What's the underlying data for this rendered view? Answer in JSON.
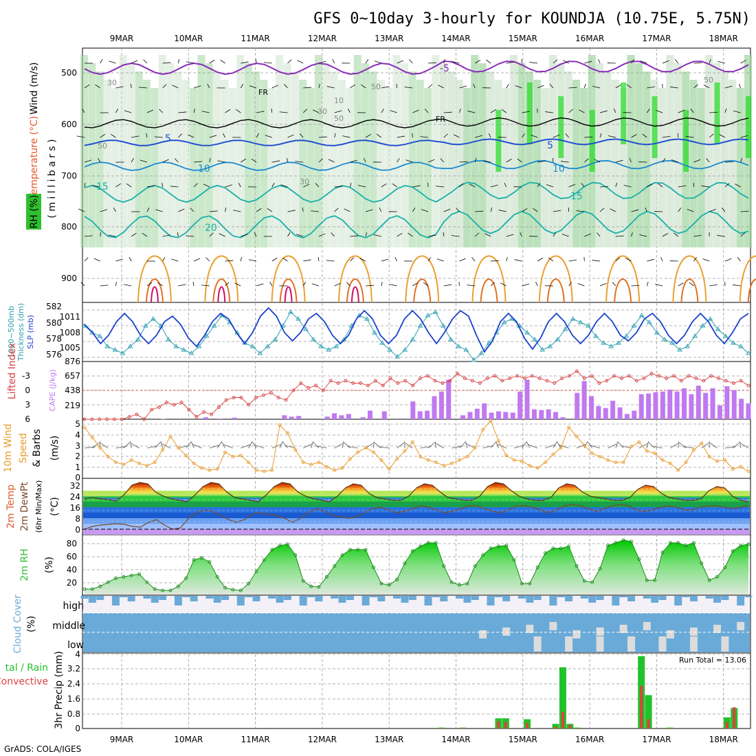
{
  "title": "GFS 0~10day 3-hourly for KOUNDJA (10.75E, 5.75N)",
  "footer": "GrADS: COLA/IGES",
  "date_labels": [
    "9MAR",
    "10MAR",
    "11MAR",
    "12MAR",
    "13MAR",
    "14MAR",
    "15MAR",
    "16MAR",
    "17MAR",
    "18MAR"
  ],
  "run_total_label": "Run Total = 13.06",
  "colors": {
    "axis": "#000000",
    "grid": "#9a9a9a",
    "thickness": "#2a9fb0",
    "slp": "#1a3fcc",
    "cape": "#c079f0",
    "lifted": "#d84040",
    "wind_speed": "#e89a2a",
    "rh_fill": "#2fbf2f",
    "cloud": "#6aaad8",
    "precip_total": "#22c22a",
    "precip_conv": "#e04040"
  },
  "panels": {
    "upper": {
      "wind_label": "Wind (m/s)",
      "temp_label": "Temperature (°C)",
      "rh_label": "RH (%)",
      "ylabel": "( m i l l i b a r s )",
      "ytick_labels": [
        "500",
        "600",
        "700",
        "800",
        "900"
      ],
      "temp_labels": [
        "-5",
        "5",
        "5",
        "10",
        "10",
        "15",
        "15",
        "20"
      ],
      "rh_labels": [
        "30",
        "50",
        "30",
        "50",
        "10",
        "50",
        "30",
        "50"
      ],
      "freezing_labels": [
        "FR",
        "FR"
      ]
    },
    "thickness": {
      "left_label": "1000~500mb",
      "left_label2": "Thickness (dm)",
      "right_label": "SLP (mb)",
      "left_ticks": [
        "582",
        "580",
        "578",
        "576"
      ],
      "right_ticks": [
        "1011",
        "1008",
        "1005",
        "876"
      ]
    },
    "cape": {
      "left_label": "Lifted Index",
      "right_label": "CAPE (J/kg)",
      "left_ticks": [
        "-3",
        "0",
        "3",
        "6"
      ],
      "right_ticks": [
        "657",
        "438",
        "219"
      ]
    },
    "wind10": {
      "label1": "10m Wind",
      "label2": "Speed",
      "label3": "& Barbs",
      "unit": "(m/s)",
      "ticks": [
        "5",
        "4",
        "3",
        "2",
        "1",
        "0"
      ]
    },
    "temp2m": {
      "label1": "2m Temp",
      "label2": "2m DewPt",
      "label3": "(6hr Min/Max)",
      "unit": "(°C)",
      "ticks": [
        "32",
        "24",
        "16",
        "8",
        "0"
      ]
    },
    "rh2m": {
      "label": "2m RH",
      "unit": "(%)",
      "ticks": [
        "80",
        "60",
        "40",
        "20"
      ]
    },
    "cloud": {
      "label": "Cloud Cover",
      "unit": "(%)",
      "levels": [
        "high",
        "middle",
        "low"
      ]
    },
    "precip": {
      "label1": "tal / Rain",
      "label2": "Convective",
      "ylabel": "3hr Precip (mm)",
      "ticks": [
        "4",
        "3.2",
        "2.4",
        "1.6",
        "0.8",
        "0"
      ]
    }
  },
  "chart_data": [
    {
      "type": "line",
      "name": "1000-500mb thickness (dm)",
      "ylim": [
        575,
        583
      ],
      "values": [
        580,
        579,
        578.5,
        577,
        576.5,
        576,
        577,
        578,
        580,
        581,
        580,
        578,
        577,
        576.5,
        576,
        577,
        578.5,
        580,
        581.5,
        580.5,
        579,
        577.5,
        577,
        576,
        577,
        578,
        580,
        582,
        581,
        579.5,
        578,
        577,
        576.5,
        577,
        578,
        580,
        581.5,
        581,
        579,
        577.5,
        576.5,
        575.5,
        576.5,
        578,
        580,
        581.5,
        582,
        580,
        578,
        577,
        576.5,
        575,
        576,
        577.5,
        579,
        580.5,
        581,
        580,
        579,
        578,
        576.5,
        577,
        578,
        579.5,
        581,
        580.5,
        580,
        578.5,
        577.5,
        577,
        577.5,
        578.5,
        580,
        581.5,
        580.5,
        579,
        578,
        577.5,
        576.5,
        577,
        578.5,
        580,
        581,
        579.5,
        578.5,
        577.5,
        577,
        576
      ]
    },
    {
      "type": "line",
      "name": "SLP (mb)",
      "ylim": [
        1003,
        1013
      ],
      "values": [
        1009.5,
        1008,
        1006,
        1007.5,
        1010,
        1011.5,
        1010,
        1007.5,
        1006,
        1007.5,
        1010,
        1011,
        1009.5,
        1007,
        1005.5,
        1007.5,
        1010,
        1011.5,
        1010.5,
        1008,
        1006,
        1008,
        1011,
        1012.5,
        1011,
        1008,
        1006.5,
        1008,
        1010.5,
        1011.5,
        1010,
        1007.5,
        1006,
        1007.5,
        1010.5,
        1012,
        1010.5,
        1007.5,
        1006,
        1007.5,
        1010.5,
        1012,
        1010.5,
        1008,
        1006,
        1008,
        1010.5,
        1012,
        1011,
        1007.5,
        1004.5,
        1006.5,
        1010,
        1011.5,
        1010,
        1007,
        1005,
        1007,
        1010,
        1011.5,
        1010,
        1007.5,
        1006,
        1007.5,
        1010,
        1011.5,
        1010,
        1007.5,
        1006.5,
        1008,
        1010.5,
        1011.5,
        1010,
        1007.5,
        1006,
        1007.5,
        1010,
        1011.5,
        1010,
        1007.5,
        1006,
        1008,
        1010.5,
        1011.5
      ]
    },
    {
      "type": "bar",
      "name": "CAPE (J/kg)",
      "ylim": [
        0,
        876
      ],
      "values": [
        0,
        0,
        5,
        5,
        0,
        0,
        0,
        0,
        0,
        0,
        0,
        5,
        0,
        0,
        0,
        0,
        0,
        30,
        0,
        10,
        0,
        25,
        0,
        0,
        0,
        0,
        0,
        0,
        60,
        40,
        50,
        0,
        0,
        0,
        40,
        90,
        60,
        80,
        0,
        30,
        130,
        0,
        120,
        0,
        0,
        0,
        270,
        120,
        130,
        350,
        420,
        600,
        0,
        60,
        110,
        160,
        240,
        100,
        120,
        110,
        100,
        420,
        600,
        150,
        140,
        150,
        110,
        30,
        0,
        400,
        580,
        350,
        200,
        170,
        280,
        180,
        80,
        130,
        380,
        390,
        410,
        420,
        450,
        420,
        470,
        380,
        510,
        400,
        470,
        210,
        500,
        440,
        310,
        240
      ]
    },
    {
      "type": "line",
      "name": "Lifted Index",
      "ylim": [
        -6,
        6
      ],
      "values": [
        6,
        6,
        6,
        6,
        6,
        6,
        5.5,
        5,
        6,
        4,
        3.5,
        2.5,
        3,
        2.5,
        4,
        5.5,
        4.5,
        5,
        3.5,
        2,
        1.5,
        1.5,
        3,
        1.5,
        1,
        0.5,
        1.5,
        2,
        0,
        -1.5,
        -0.5,
        -1,
        0,
        -2,
        -1.5,
        -2,
        -1.5,
        -1.5,
        -1,
        -2,
        -1,
        -2.5,
        -1.5,
        -2,
        -1,
        -2.5,
        -3,
        -2,
        -1.5,
        -2,
        -3.5,
        -2.5,
        -2,
        -1.5,
        -2.5,
        -3,
        -2,
        -2.5,
        -3,
        -2.5,
        -3,
        -2.5,
        -2,
        -1.5,
        -2.5,
        -3,
        -4,
        -2.5,
        -3,
        -1.5,
        -2,
        -3,
        -2.5,
        -3,
        -2,
        -2.5,
        -3.5,
        -3,
        -2.5,
        -3,
        -2,
        -3,
        -2.5,
        -2,
        -3,
        -2.5,
        -2,
        -1.5,
        -2,
        -1
      ]
    },
    {
      "type": "line",
      "name": "10m wind speed (m/s)",
      "ylim": [
        0,
        5
      ],
      "values": [
        4.4,
        3.5,
        2.6,
        1.8,
        1.3,
        1.1,
        1.5,
        1.2,
        1,
        1.3,
        2.4,
        3.6,
        2.6,
        1.9,
        1.2,
        0.8,
        0.6,
        0.7,
        2.2,
        1.8,
        1.9,
        1.3,
        0.6,
        0.5,
        0.6,
        4.6,
        3.9,
        2.4,
        1.3,
        1.1,
        1.3,
        0.9,
        0.6,
        0.8,
        1.6,
        2.2,
        2.6,
        2.2,
        1.5,
        0.7,
        1.6,
        2.3,
        3.1,
        1.8,
        1.5,
        1.3,
        1,
        1.2,
        1.5,
        1.8,
        2.6,
        4.2,
        5,
        3.2,
        1.9,
        1.5,
        1.4,
        1,
        0.8,
        1.3,
        2,
        2.6,
        4.4,
        3.6,
        2.8,
        2.1,
        1.8,
        1.5,
        1.3,
        1.3,
        2.7,
        3.1,
        2.3,
        2.1,
        1.5,
        1.2,
        0.6,
        1.3,
        2.4,
        3,
        1.8,
        1.4,
        1.5,
        0.7,
        0.9,
        0.5
      ]
    },
    {
      "type": "area",
      "name": "2m Temp (°C)",
      "ylim": [
        -4,
        36
      ],
      "values": [
        22,
        23,
        22,
        21.5,
        20.5,
        25,
        32,
        34,
        33,
        27,
        24,
        22,
        21,
        20,
        25,
        31,
        34,
        33,
        27,
        23,
        22,
        21,
        20,
        25,
        31,
        34,
        33,
        27,
        24,
        22,
        21,
        20,
        24,
        30,
        33,
        32,
        26,
        23,
        22,
        21,
        21,
        24,
        30,
        33,
        32,
        27,
        23,
        22,
        21,
        21,
        24,
        31,
        34,
        33,
        28,
        24,
        22,
        21,
        21,
        23,
        30,
        33,
        32,
        27,
        24,
        23,
        22,
        21,
        21,
        23,
        29,
        32,
        31,
        26,
        23,
        22,
        21,
        21,
        22,
        28,
        31,
        30,
        24,
        21,
        20
      ]
    },
    {
      "type": "line",
      "name": "2m DewPt (°C)",
      "ylim": [
        -4,
        36
      ],
      "values": [
        0,
        2,
        3,
        3.5,
        4,
        3.5,
        2,
        1.5,
        5,
        7,
        3,
        0,
        1,
        8,
        12,
        14,
        13,
        10,
        7,
        5,
        7,
        11,
        12,
        11,
        10,
        8,
        5,
        8,
        12,
        15,
        13,
        10,
        9,
        8,
        9,
        12,
        15,
        16,
        14,
        12,
        13,
        15,
        17,
        16,
        14,
        12,
        13,
        15,
        17,
        17,
        15,
        13,
        12,
        14,
        17,
        17,
        16,
        14,
        12,
        14,
        17,
        18,
        17,
        15,
        13,
        15,
        17,
        18,
        17,
        14,
        13,
        14,
        16,
        17,
        16,
        14,
        14,
        16,
        17,
        17,
        16,
        15,
        16,
        17
      ]
    },
    {
      "type": "area",
      "name": "2m RH (%)",
      "ylim": [
        5,
        90
      ],
      "values": [
        12,
        12,
        16,
        22,
        28,
        30,
        32,
        34,
        22,
        12,
        10,
        10,
        16,
        28,
        55,
        58,
        52,
        30,
        14,
        11,
        10,
        20,
        38,
        55,
        70,
        76,
        78,
        62,
        24,
        16,
        15,
        30,
        46,
        62,
        70,
        70,
        70,
        44,
        20,
        18,
        26,
        50,
        68,
        75,
        80,
        80,
        46,
        22,
        18,
        20,
        46,
        62,
        72,
        75,
        76,
        55,
        20,
        20,
        44,
        65,
        72,
        72,
        75,
        46,
        24,
        22,
        42,
        76,
        80,
        84,
        82,
        56,
        25,
        25,
        66,
        80,
        80,
        76,
        80,
        50,
        25,
        30,
        44,
        68,
        76,
        78
      ]
    },
    {
      "type": "bar",
      "name": "3hr Precip total (mm)",
      "ylim": [
        0,
        4
      ],
      "values": [
        0,
        0,
        0,
        0,
        0,
        0,
        0,
        0,
        0,
        0,
        0,
        0,
        0,
        0,
        0,
        0,
        0,
        0,
        0,
        0,
        0,
        0,
        0,
        0,
        0,
        0,
        0,
        0,
        0,
        0,
        0,
        0,
        0,
        0,
        0,
        0,
        0,
        0,
        0,
        0,
        0,
        0,
        0,
        0,
        0,
        0,
        0,
        0,
        0,
        0,
        0.05,
        0,
        0,
        0.05,
        0,
        0,
        0,
        0,
        0.55,
        0.55,
        0,
        0,
        0.5,
        0,
        0,
        0,
        0.25,
        3.3,
        0.25,
        0.05,
        0,
        0,
        0,
        0,
        0,
        0,
        0,
        0,
        3.9,
        1.8,
        0,
        0,
        0.05,
        0,
        0,
        0,
        0,
        0,
        0,
        0,
        0.6,
        1.1,
        0,
        0
      ]
    },
    {
      "type": "bar",
      "name": "3hr Precip convective (mm)",
      "ylim": [
        0,
        4
      ],
      "values": [
        0,
        0,
        0,
        0,
        0,
        0,
        0,
        0,
        0,
        0,
        0,
        0,
        0,
        0,
        0,
        0,
        0,
        0,
        0,
        0,
        0,
        0,
        0,
        0,
        0,
        0,
        0,
        0,
        0,
        0,
        0,
        0,
        0,
        0,
        0,
        0,
        0,
        0,
        0,
        0,
        0,
        0,
        0,
        0,
        0,
        0,
        0,
        0,
        0,
        0,
        0.03,
        0,
        0,
        0.03,
        0,
        0,
        0,
        0,
        0.4,
        0.35,
        0,
        0,
        0.3,
        0,
        0,
        0,
        0.1,
        0.9,
        0.2,
        0.02,
        0,
        0,
        0,
        0,
        0,
        0,
        0,
        0,
        2.3,
        0.5,
        0,
        0,
        0.02,
        0,
        0,
        0,
        0,
        0,
        0,
        0,
        0.35,
        1.15,
        0,
        0
      ]
    }
  ]
}
